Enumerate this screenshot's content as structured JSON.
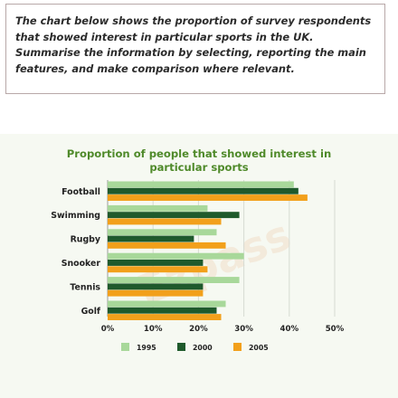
{
  "prompt": {
    "text": "The chart below shows the proportion of survey respondents that showed interest in particular sports in the UK. Summarise the information by selecting, reporting the main features, and make comparison where relevant."
  },
  "chart_data": {
    "type": "bar",
    "orientation": "horizontal",
    "title": "Proportion of people that showed interest in particular sports",
    "title_lines": [
      "Proportion of people that showed interest in",
      "particular sports"
    ],
    "categories": [
      "Football",
      "Swimming",
      "Rugby",
      "Snooker",
      "Tennis",
      "Golf"
    ],
    "series": [
      {
        "name": "1995",
        "color": "#a8d89a",
        "values": [
          41,
          22,
          24,
          30,
          29,
          26
        ]
      },
      {
        "name": "2000",
        "color": "#1f5a2c",
        "values": [
          42,
          29,
          19,
          21,
          21,
          24
        ]
      },
      {
        "name": "2005",
        "color": "#f2a01b",
        "values": [
          44,
          25,
          26,
          22,
          21,
          25
        ]
      }
    ],
    "xlim": [
      0,
      50
    ],
    "ticks": [
      0,
      10,
      20,
      30,
      40,
      50
    ],
    "tick_labels": [
      "0%",
      "10%",
      "20%",
      "30%",
      "40%",
      "50%"
    ],
    "grid": true,
    "legend_position": "bottom",
    "watermark": "Ezpass"
  }
}
